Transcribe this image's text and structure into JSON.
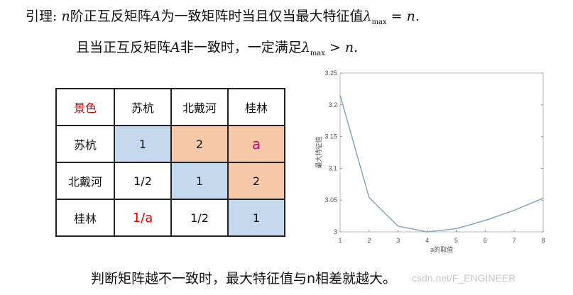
{
  "text": {
    "lemma_prefix": "引理: ",
    "lemma_n": "n",
    "lemma_mid": "阶正互反矩阵",
    "lemma_A": "A",
    "lemma_rest": "为一致矩阵时当且仅当最大特征值",
    "lambda": "λ",
    "max": "max",
    "lemma_eq": " = n.",
    "line2_a": "且当正互反矩阵",
    "line2_A": "A",
    "line2_b": "非一致时，一定满足",
    "line2_gt": " > n.",
    "conclusion": "判断矩阵越不一致时，最大特征值与n相差就越大。",
    "watermark": "csdn.net/F_ENGINEER"
  },
  "table": {
    "header": [
      "景色",
      "苏杭",
      "北戴河",
      "桂林"
    ],
    "rows": [
      [
        "苏杭",
        "1",
        "2",
        "a"
      ],
      [
        "北戴河",
        "1/2",
        "1",
        "2"
      ],
      [
        "桂林",
        "1/a",
        "1/2",
        "1"
      ]
    ],
    "colors": {
      "blue": "#c5d9ee",
      "orange": "#f6caa8",
      "red": "#e00000"
    }
  },
  "chart_data": {
    "type": "line",
    "xlabel": "a的取值",
    "ylabel": "最大特征值",
    "x": [
      1,
      2,
      3,
      4,
      5,
      6,
      7,
      8
    ],
    "values": [
      3.215,
      3.054,
      3.009,
      3.0,
      3.005,
      3.018,
      3.034,
      3.053
    ],
    "xlim": [
      1,
      8
    ],
    "ylim": [
      3,
      3.25
    ],
    "xticks": [
      "1",
      "2",
      "3",
      "4",
      "5",
      "6",
      "7",
      "8"
    ],
    "yticks": [
      "3",
      "3.05",
      "3.1",
      "3.15",
      "3.2",
      "3.25"
    ],
    "grid": false,
    "line_color": "#7fa7bf"
  }
}
